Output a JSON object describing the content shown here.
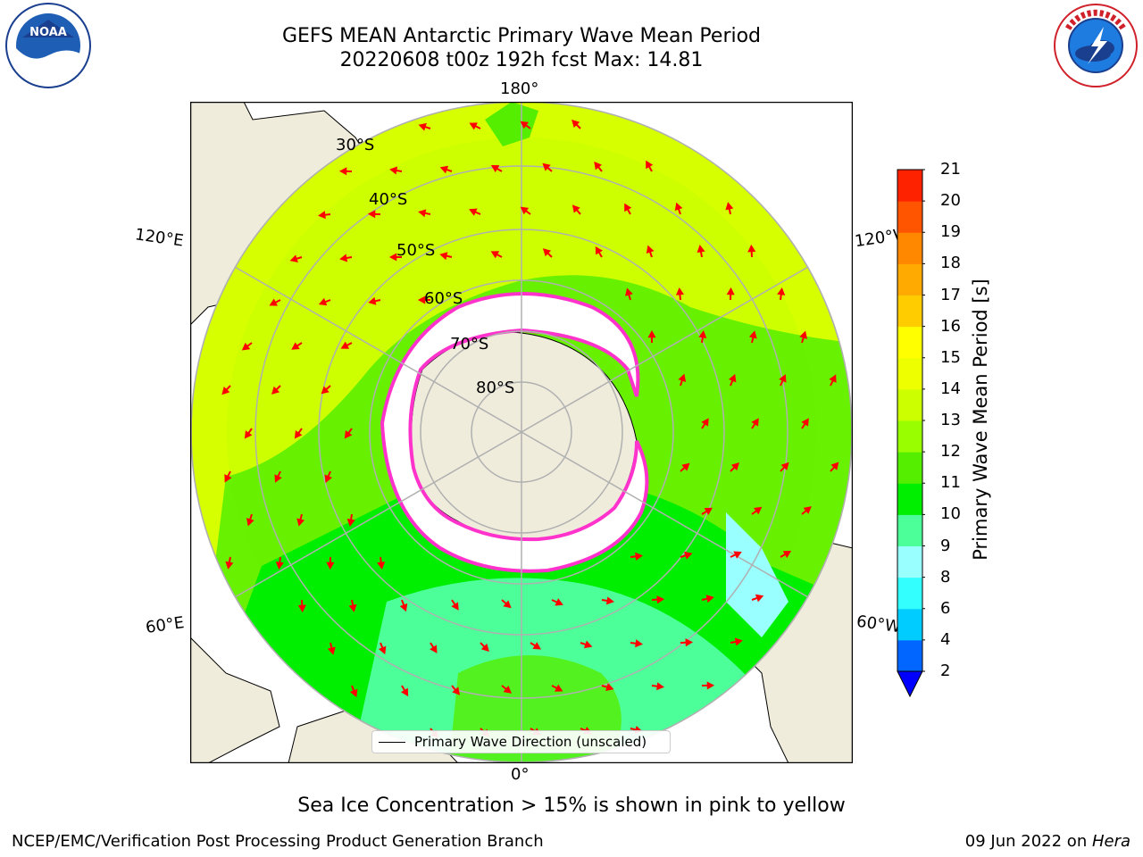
{
  "header": {
    "title_line1": "GEFS MEAN Antarctic Primary Wave Mean Period",
    "title_line2": "20220608 t00z 192h fcst   Max: 14.81"
  },
  "logos": {
    "left": "noaa-logo",
    "right": "national-weather-service-logo"
  },
  "map": {
    "projection": "south-polar-stereographic",
    "longitude_labels": [
      "180°",
      "120°E",
      "120°W",
      "60°E",
      "60°W",
      "0°"
    ],
    "latitude_labels": [
      "30°S",
      "40°S",
      "50°S",
      "60°S",
      "70°S",
      "80°S"
    ],
    "colors": {
      "land": "#efecdc",
      "sea_ice": "#ffffff",
      "ice_edge": "#ff33cc",
      "arrows": "#ff0000",
      "gridlines": "#b0b0b0"
    }
  },
  "legend": {
    "label": "Primary Wave Direction (unscaled)"
  },
  "colorbar": {
    "label": "Primary Wave Mean Period [s]",
    "ticks": [
      "2",
      "4",
      "6",
      "8",
      "9",
      "10",
      "11",
      "12",
      "13",
      "14",
      "15",
      "16",
      "17",
      "18",
      "19",
      "20",
      "21"
    ],
    "colors": [
      "#0066ff",
      "#00ccff",
      "#33ffff",
      "#99ffff",
      "#4dff99",
      "#00ee00",
      "#55ee00",
      "#99ff00",
      "#ccff00",
      "#eeff00",
      "#ffff00",
      "#ffcc00",
      "#ffaa00",
      "#ff8800",
      "#ff5500",
      "#ff2200"
    ],
    "extend_color": "#0000ff"
  },
  "note": "Sea Ice Concentration > 15% is shown in pink to yellow",
  "footer": {
    "left": "NCEP/EMC/Verification Post Processing Product Generation Branch",
    "date": "09 Jun 2022 on ",
    "machine": "Hera"
  }
}
